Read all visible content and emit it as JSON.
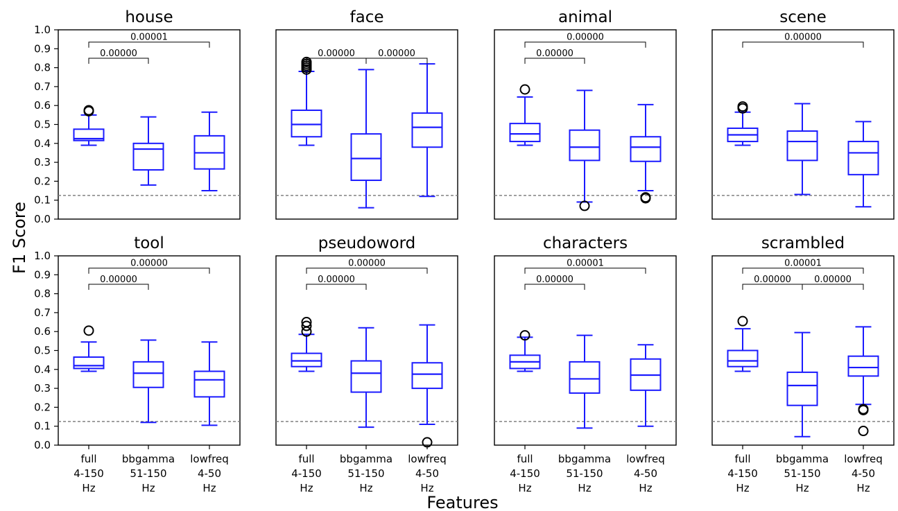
{
  "figure": {
    "ylabel": "F1 Score",
    "xlabel": "Features"
  },
  "chart_data": {
    "type": "box",
    "ylim": [
      0,
      1
    ],
    "yticks": [
      "0.0",
      "0.1",
      "0.2",
      "0.3",
      "0.4",
      "0.5",
      "0.6",
      "0.7",
      "0.8",
      "0.9",
      "1.0"
    ],
    "chance_level": 0.125,
    "categories": [
      {
        "lines": [
          "full",
          "4-150",
          "Hz"
        ]
      },
      {
        "lines": [
          "bbgamma",
          "51-150",
          "Hz"
        ]
      },
      {
        "lines": [
          "lowfreq",
          "4-50",
          "Hz"
        ]
      }
    ],
    "colors": {
      "box": "#1a1aff",
      "chance": "#808080",
      "bracket": "#000000"
    },
    "panels": [
      {
        "title": "house",
        "boxes": [
          {
            "whislo": 0.39,
            "q1": 0.415,
            "med": 0.425,
            "q3": 0.475,
            "whishi": 0.55,
            "fliers": [
              0.575,
              0.57
            ]
          },
          {
            "whislo": 0.18,
            "q1": 0.26,
            "med": 0.37,
            "q3": 0.4,
            "whishi": 0.54,
            "fliers": []
          },
          {
            "whislo": 0.15,
            "q1": 0.265,
            "med": 0.35,
            "q3": 0.44,
            "whishi": 0.565,
            "fliers": []
          }
        ],
        "brackets": [
          {
            "from": 0,
            "to": 1,
            "level": 0.85,
            "label": "0.00000"
          },
          {
            "from": 0,
            "to": 2,
            "level": 0.935,
            "label": "0.00001"
          }
        ]
      },
      {
        "title": "face",
        "boxes": [
          {
            "whislo": 0.39,
            "q1": 0.435,
            "med": 0.5,
            "q3": 0.575,
            "whishi": 0.78,
            "fliers": [
              0.79,
              0.8,
              0.81,
              0.82,
              0.83
            ]
          },
          {
            "whislo": 0.06,
            "q1": 0.205,
            "med": 0.32,
            "q3": 0.45,
            "whishi": 0.79,
            "fliers": []
          },
          {
            "whislo": 0.12,
            "q1": 0.38,
            "med": 0.485,
            "q3": 0.56,
            "whishi": 0.82,
            "fliers": []
          }
        ],
        "brackets": [
          {
            "from": 0,
            "to": 1,
            "level": 0.85,
            "label": "0.00000"
          },
          {
            "from": 1,
            "to": 2,
            "level": 0.85,
            "label": "0.00000"
          }
        ]
      },
      {
        "title": "animal",
        "boxes": [
          {
            "whislo": 0.39,
            "q1": 0.41,
            "med": 0.45,
            "q3": 0.505,
            "whishi": 0.645,
            "fliers": [
              0.685
            ]
          },
          {
            "whislo": 0.09,
            "q1": 0.31,
            "med": 0.38,
            "q3": 0.47,
            "whishi": 0.68,
            "fliers": [
              0.07
            ]
          },
          {
            "whislo": 0.15,
            "q1": 0.305,
            "med": 0.38,
            "q3": 0.435,
            "whishi": 0.605,
            "fliers": [
              0.115,
              0.11
            ]
          }
        ],
        "brackets": [
          {
            "from": 0,
            "to": 1,
            "level": 0.85,
            "label": "0.00000"
          },
          {
            "from": 0,
            "to": 2,
            "level": 0.935,
            "label": "0.00000"
          }
        ]
      },
      {
        "title": "scene",
        "boxes": [
          {
            "whislo": 0.39,
            "q1": 0.41,
            "med": 0.445,
            "q3": 0.48,
            "whishi": 0.565,
            "fliers": [
              0.595,
              0.585
            ]
          },
          {
            "whislo": 0.13,
            "q1": 0.31,
            "med": 0.41,
            "q3": 0.465,
            "whishi": 0.61,
            "fliers": []
          },
          {
            "whislo": 0.065,
            "q1": 0.235,
            "med": 0.35,
            "q3": 0.41,
            "whishi": 0.515,
            "fliers": []
          }
        ],
        "brackets": [
          {
            "from": 0,
            "to": 2,
            "level": 0.935,
            "label": "0.00000"
          }
        ]
      },
      {
        "title": "tool",
        "boxes": [
          {
            "whislo": 0.39,
            "q1": 0.405,
            "med": 0.42,
            "q3": 0.465,
            "whishi": 0.545,
            "fliers": [
              0.605
            ]
          },
          {
            "whislo": 0.12,
            "q1": 0.305,
            "med": 0.38,
            "q3": 0.44,
            "whishi": 0.555,
            "fliers": []
          },
          {
            "whislo": 0.105,
            "q1": 0.255,
            "med": 0.345,
            "q3": 0.39,
            "whishi": 0.545,
            "fliers": []
          }
        ],
        "brackets": [
          {
            "from": 0,
            "to": 1,
            "level": 0.85,
            "label": "0.00000"
          },
          {
            "from": 0,
            "to": 2,
            "level": 0.935,
            "label": "0.00000"
          }
        ]
      },
      {
        "title": "pseudoword",
        "boxes": [
          {
            "whislo": 0.39,
            "q1": 0.415,
            "med": 0.445,
            "q3": 0.485,
            "whishi": 0.585,
            "fliers": [
              0.6,
              0.63,
              0.65
            ]
          },
          {
            "whislo": 0.095,
            "q1": 0.28,
            "med": 0.38,
            "q3": 0.445,
            "whishi": 0.62,
            "fliers": []
          },
          {
            "whislo": 0.11,
            "q1": 0.3,
            "med": 0.375,
            "q3": 0.435,
            "whishi": 0.635,
            "fliers": [
              0.015
            ]
          }
        ],
        "brackets": [
          {
            "from": 0,
            "to": 1,
            "level": 0.85,
            "label": "0.00000"
          },
          {
            "from": 0,
            "to": 2,
            "level": 0.935,
            "label": "0.00000"
          }
        ]
      },
      {
        "title": "characters",
        "boxes": [
          {
            "whislo": 0.39,
            "q1": 0.405,
            "med": 0.44,
            "q3": 0.475,
            "whishi": 0.57,
            "fliers": [
              0.58
            ]
          },
          {
            "whislo": 0.09,
            "q1": 0.275,
            "med": 0.35,
            "q3": 0.44,
            "whishi": 0.58,
            "fliers": []
          },
          {
            "whislo": 0.1,
            "q1": 0.29,
            "med": 0.37,
            "q3": 0.455,
            "whishi": 0.53,
            "fliers": []
          }
        ],
        "brackets": [
          {
            "from": 0,
            "to": 1,
            "level": 0.85,
            "label": "0.00000"
          },
          {
            "from": 0,
            "to": 2,
            "level": 0.935,
            "label": "0.00001"
          }
        ]
      },
      {
        "title": "scrambled",
        "boxes": [
          {
            "whislo": 0.39,
            "q1": 0.415,
            "med": 0.445,
            "q3": 0.5,
            "whishi": 0.615,
            "fliers": [
              0.655
            ]
          },
          {
            "whislo": 0.045,
            "q1": 0.21,
            "med": 0.315,
            "q3": 0.385,
            "whishi": 0.595,
            "fliers": []
          },
          {
            "whislo": 0.215,
            "q1": 0.365,
            "med": 0.41,
            "q3": 0.47,
            "whishi": 0.625,
            "fliers": [
              0.19,
              0.185,
              0.075
            ]
          }
        ],
        "brackets": [
          {
            "from": 0,
            "to": 1,
            "level": 0.85,
            "label": "0.00000"
          },
          {
            "from": 1,
            "to": 2,
            "level": 0.85,
            "label": "0.00000"
          },
          {
            "from": 0,
            "to": 2,
            "level": 0.935,
            "label": "0.00001"
          }
        ]
      }
    ]
  }
}
